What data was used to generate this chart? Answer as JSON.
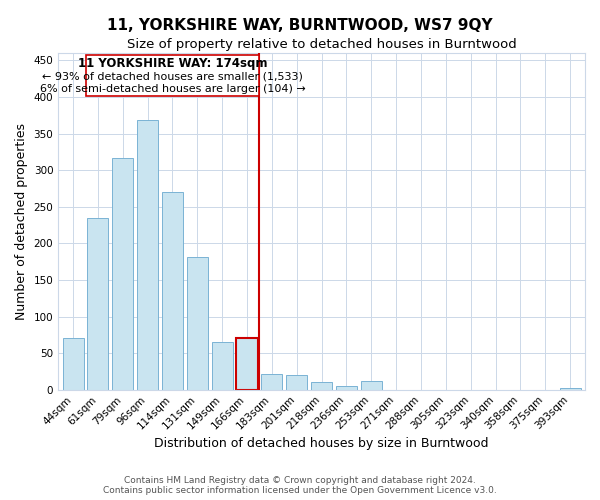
{
  "title": "11, YORKSHIRE WAY, BURNTWOOD, WS7 9QY",
  "subtitle": "Size of property relative to detached houses in Burntwood",
  "xlabel": "Distribution of detached houses by size in Burntwood",
  "ylabel": "Number of detached properties",
  "bar_labels": [
    "44sqm",
    "61sqm",
    "79sqm",
    "96sqm",
    "114sqm",
    "131sqm",
    "149sqm",
    "166sqm",
    "183sqm",
    "201sqm",
    "218sqm",
    "236sqm",
    "253sqm",
    "271sqm",
    "288sqm",
    "305sqm",
    "323sqm",
    "340sqm",
    "358sqm",
    "375sqm",
    "393sqm"
  ],
  "bar_values": [
    70,
    235,
    317,
    368,
    270,
    182,
    65,
    70,
    22,
    20,
    10,
    5,
    12,
    0,
    0,
    0,
    0,
    0,
    0,
    0,
    2
  ],
  "bar_color": "#c9e4f0",
  "bar_edge_color": "#7ab3d4",
  "highlight_bar_index": 7,
  "highlight_color": "#cc0000",
  "vline_color": "#cc0000",
  "annotation_title": "11 YORKSHIRE WAY: 174sqm",
  "annotation_line1": "← 93% of detached houses are smaller (1,533)",
  "annotation_line2": "6% of semi-detached houses are larger (104) →",
  "ylim": [
    0,
    460
  ],
  "yticks": [
    0,
    50,
    100,
    150,
    200,
    250,
    300,
    350,
    400,
    450
  ],
  "footer_line1": "Contains HM Land Registry data © Crown copyright and database right 2024.",
  "footer_line2": "Contains public sector information licensed under the Open Government Licence v3.0.",
  "title_fontsize": 11,
  "subtitle_fontsize": 9.5,
  "axis_label_fontsize": 9,
  "tick_fontsize": 7.5,
  "annotation_fontsize": 8.5,
  "footer_fontsize": 6.5,
  "background_color": "#ffffff",
  "grid_color": "#ccd8e8"
}
